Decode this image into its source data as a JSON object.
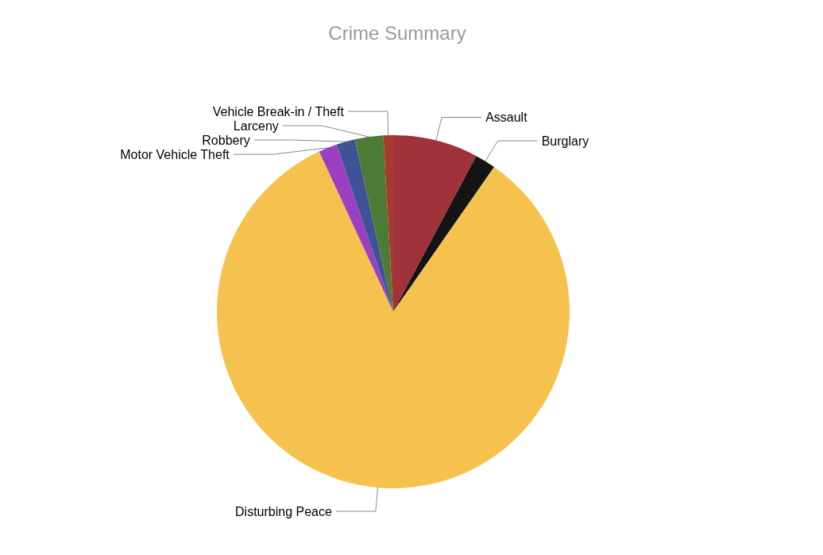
{
  "chart_data": {
    "type": "pie",
    "title": "Crime Summary",
    "categories": [
      "Assault",
      "Burglary",
      "Disturbing Peace",
      "Motor Vehicle Theft",
      "Robbery",
      "Larceny",
      "Vehicle Break-in / Theft"
    ],
    "values": [
      7.8,
      1.9,
      83.4,
      1.7,
      1.7,
      2.6,
      0.9
    ],
    "colors": [
      "#a0323a",
      "#141414",
      "#f5c24e",
      "#9b40c0",
      "#3f5296",
      "#4d7a35",
      "#a83a2a"
    ]
  }
}
